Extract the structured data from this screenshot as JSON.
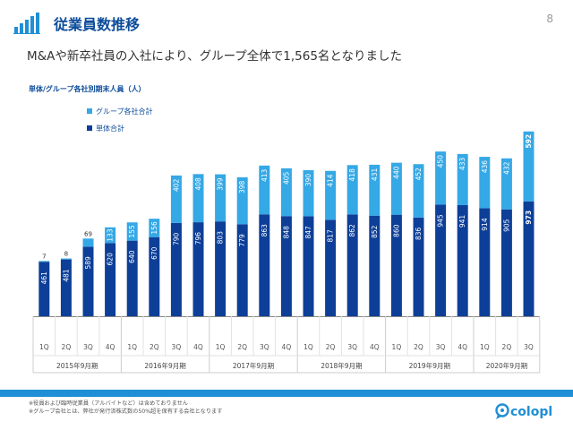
{
  "header": {
    "title": "従業員数推移",
    "page_number": "8",
    "subtitle": "M&Aや新卒社員の入社により、グループ全体で1,565名となりました"
  },
  "colors": {
    "primary_blue": "#0d3f98",
    "light_blue": "#35a8e6",
    "title_blue": "#0d4c9a",
    "bar_band": "#1f8fd6"
  },
  "chart_data": {
    "type": "bar",
    "stacked": true,
    "title": "単体/グループ各社別期末人員（人）",
    "legend": [
      "グループ各社合計",
      "単体合計"
    ],
    "legend_position": "top-left",
    "categories": [
      "1Q",
      "2Q",
      "3Q",
      "4Q",
      "1Q",
      "2Q",
      "3Q",
      "4Q",
      "1Q",
      "2Q",
      "3Q",
      "4Q",
      "1Q",
      "2Q",
      "3Q",
      "4Q",
      "1Q",
      "2Q",
      "3Q",
      "4Q",
      "1Q",
      "2Q",
      "3Q"
    ],
    "groups": [
      {
        "label": "2015年9月期",
        "count": 4
      },
      {
        "label": "2016年9月期",
        "count": 4
      },
      {
        "label": "2017年9月期",
        "count": 4
      },
      {
        "label": "2018年9月期",
        "count": 4
      },
      {
        "label": "2019年9月期",
        "count": 4
      },
      {
        "label": "2020年9月期",
        "count": 3
      }
    ],
    "series": [
      {
        "name": "単体合計",
        "values": [
          461,
          481,
          589,
          620,
          640,
          670,
          790,
          796,
          803,
          779,
          863,
          848,
          847,
          817,
          862,
          852,
          860,
          836,
          945,
          941,
          914,
          905,
          973
        ]
      },
      {
        "name": "グループ各社合計",
        "values": [
          7,
          8,
          69,
          133,
          155,
          156,
          402,
          408,
          399,
          398,
          413,
          405,
          390,
          414,
          418,
          431,
          440,
          452,
          450,
          433,
          436,
          432,
          592
        ]
      }
    ],
    "ylim": [
      0,
      1600
    ],
    "grid": false
  },
  "footnotes": [
    "※役員および臨時従業員（アルバイトなど）は含めておりません",
    "※グループ会社とは、弊社が発行済株式数の50%超を保有する会社となります"
  ],
  "logo": {
    "text": "colopl",
    "icon": "colopl-pin-icon"
  }
}
